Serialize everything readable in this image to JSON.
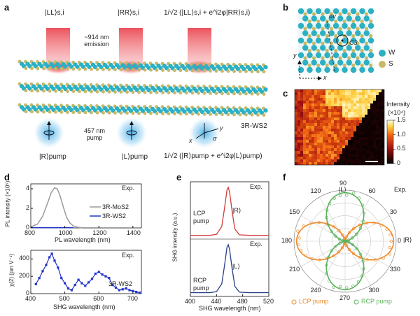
{
  "panels": {
    "a": {
      "letter": "a",
      "top_states": [
        "|LL⟩s,i",
        "|RR⟩s,i",
        "1/√2 (|LL⟩s,i + e^i2φ|RR⟩s,i)"
      ],
      "emission_label": "~914 nm emission",
      "pump_label": "457 nm pump",
      "bottom_states": [
        "|R⟩pump",
        "|L⟩pump",
        "1/√2 (|R⟩pump + e^i2φ|L⟩pump)"
      ],
      "material": "3R-WS2",
      "axes": [
        "x",
        "y",
        "σ"
      ],
      "colors": {
        "emission": "#e8343f",
        "pump": "#3aa6e6",
        "W": "#2bb0c4",
        "S": "#c9b867"
      }
    },
    "b": {
      "letter": "b",
      "labels": [
        "σv",
        "C3"
      ],
      "axes": [
        "y",
        "x"
      ],
      "legend": [
        {
          "symbol": "W",
          "color": "#2bb0c4"
        },
        {
          "symbol": "S",
          "color": "#c9b867"
        }
      ]
    },
    "c": {
      "letter": "c",
      "colorbar_title": "Intensity",
      "colorbar_unit": "(×10⁴)",
      "colorbar_ticks": [
        "1.5",
        "1.0",
        "0.5",
        "0"
      ]
    },
    "d": {
      "letter": "d",
      "tag": "Exp.",
      "tag2": "Exp.",
      "top_ylabel": "PL intensity (×10⁵)",
      "top_xlabel": "PL wavelength (nm)",
      "top_xticks": [
        "800",
        "1000",
        "1200",
        "1400"
      ],
      "top_yticks": [
        "0",
        "2",
        "4"
      ],
      "legend": [
        "3R-MoS2",
        "3R-WS2"
      ],
      "bottom_ylabel": "χ(2) (pm V⁻¹)",
      "bottom_xlabel": "SHG wavelength (nm)",
      "bottom_xticks": [
        "400",
        "500",
        "600",
        "700"
      ],
      "bottom_yticks": [
        "0",
        "200",
        "400"
      ],
      "bottom_series_label": "3R-WS2"
    },
    "e": {
      "letter": "e",
      "tag": "Exp.",
      "tag2": "Exp.",
      "ylabel": "SHG intensity (a.u.)",
      "xlabel": "SHG wavelength (nm)",
      "xticks": [
        "400",
        "440",
        "480",
        "520"
      ],
      "top_pump": [
        "LCP",
        "pump"
      ],
      "top_state": "|R⟩",
      "bottom_pump": [
        "RCP",
        "pump"
      ],
      "bottom_state": "|L⟩"
    },
    "f": {
      "letter": "f",
      "tag": "Exp.",
      "top_state": "|L⟩",
      "right_state": "|R⟩",
      "angle_labels": [
        "90",
        "60",
        "30",
        "0",
        "330",
        "300",
        "270",
        "240",
        "210",
        "180",
        "150",
        "120"
      ],
      "legend": [
        "LCP pump",
        "RCP pump"
      ],
      "colors": {
        "lcp": "#ef8a2a",
        "rcp": "#5cb35c"
      }
    }
  },
  "chart_data": [
    {
      "type": "line",
      "panel": "d-top",
      "xlabel": "PL wavelength (nm)",
      "ylabel": "PL intensity (×10⁵)",
      "xlim": [
        800,
        1450
      ],
      "ylim": [
        0,
        4.5
      ],
      "series": [
        {
          "name": "3R-MoS2",
          "color": "#9a9a9a",
          "x": [
            800,
            840,
            870,
            900,
            920,
            940,
            955,
            970,
            990,
            1010,
            1030,
            1050,
            1080,
            1100
          ],
          "y": [
            0.1,
            0.4,
            1.2,
            2.6,
            3.6,
            4.1,
            4.0,
            3.4,
            2.2,
            1.1,
            0.5,
            0.2,
            0.05,
            0.02
          ]
        },
        {
          "name": "3R-WS2",
          "color": "#2233cc",
          "x": [
            800,
            900,
            1000,
            1050
          ],
          "y": [
            0.03,
            0.03,
            0.03,
            0.03
          ]
        }
      ]
    },
    {
      "type": "line",
      "panel": "d-bottom",
      "xlabel": "SHG wavelength (nm)",
      "ylabel": "χ(2) (pm V⁻¹)",
      "xlim": [
        400,
        725
      ],
      "ylim": [
        0,
        500
      ],
      "series": [
        {
          "name": "3R-WS2",
          "color": "#2233cc",
          "x": [
            415,
            425,
            435,
            445,
            455,
            462,
            470,
            480,
            490,
            500,
            510,
            520,
            530,
            540,
            550,
            560,
            570,
            580,
            590,
            600,
            610,
            620,
            630,
            640,
            650,
            660,
            670,
            680,
            690,
            700,
            710,
            720
          ],
          "y": [
            110,
            180,
            260,
            330,
            420,
            460,
            380,
            300,
            180,
            120,
            60,
            40,
            100,
            160,
            120,
            90,
            130,
            170,
            230,
            250,
            220,
            200,
            180,
            100,
            70,
            40,
            50,
            60,
            40,
            30,
            20,
            10
          ]
        }
      ]
    },
    {
      "type": "line",
      "panel": "e-top",
      "xlabel": "SHG wavelength (nm)",
      "xlim": [
        400,
        520
      ],
      "series": [
        {
          "name": "LCP pump",
          "color": "#d23b3b",
          "x": [
            400,
            430,
            440,
            448,
            452,
            456,
            458,
            460,
            464,
            468,
            475,
            490,
            520
          ],
          "y": [
            0.02,
            0.02,
            0.04,
            0.2,
            0.55,
            0.95,
            1.0,
            0.9,
            0.5,
            0.15,
            0.03,
            0.02,
            0.02
          ]
        }
      ]
    },
    {
      "type": "line",
      "panel": "e-bottom",
      "xlabel": "SHG wavelength (nm)",
      "xlim": [
        400,
        520
      ],
      "series": [
        {
          "name": "RCP pump",
          "color": "#2a3f8a",
          "x": [
            400,
            430,
            440,
            448,
            452,
            456,
            458,
            460,
            464,
            468,
            475,
            490,
            520
          ],
          "y": [
            0.02,
            0.02,
            0.04,
            0.2,
            0.55,
            0.95,
            1.0,
            0.9,
            0.5,
            0.15,
            0.03,
            0.02,
            0.02
          ]
        }
      ]
    },
    {
      "type": "scatter",
      "panel": "f",
      "coordinate": "polar",
      "series": [
        {
          "name": "LCP pump",
          "color": "#ef8a2a",
          "lobes_deg": [
            0,
            180
          ]
        },
        {
          "name": "RCP pump",
          "color": "#5cb35c",
          "lobes_deg": [
            90,
            270
          ]
        }
      ]
    }
  ]
}
